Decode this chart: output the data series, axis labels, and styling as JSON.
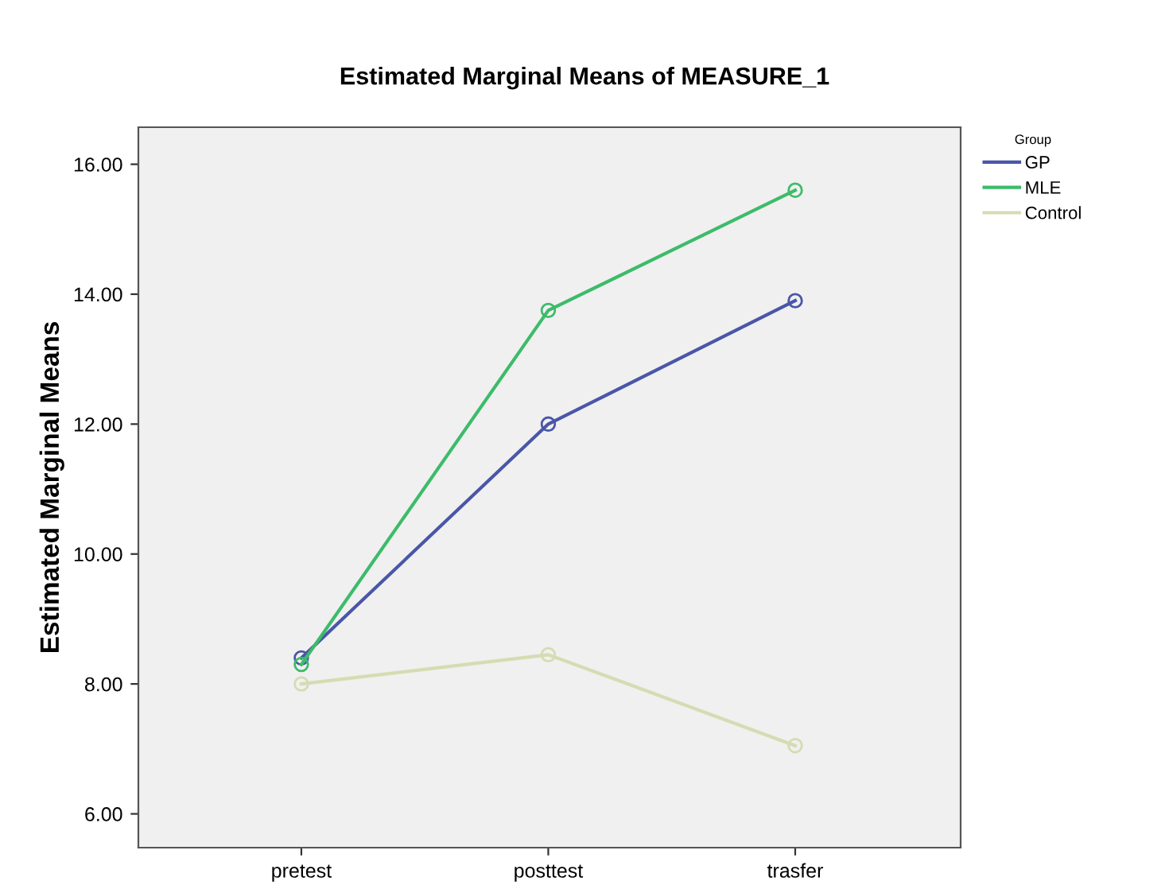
{
  "chart_data": {
    "type": "line",
    "title": "Estimated Marginal Means of MEASURE_1",
    "ylabel": "Estimated Marginal Means",
    "legend_title": "Group",
    "categories": [
      "pretest",
      "posttest",
      "trasfer"
    ],
    "series": [
      {
        "name": "GP",
        "color": "#4a56a8",
        "values": [
          8.4,
          12.0,
          13.9
        ]
      },
      {
        "name": "MLE",
        "color": "#3dbb6a",
        "values": [
          8.3,
          13.75,
          15.6
        ]
      },
      {
        "name": "Control",
        "color": "#d6dbb2",
        "values": [
          8.0,
          8.45,
          7.05
        ]
      }
    ],
    "ylim": [
      5.48,
      16.57
    ],
    "yticks": [
      {
        "value": 6,
        "label": "6.00"
      },
      {
        "value": 8,
        "label": "8.00"
      },
      {
        "value": 10,
        "label": "10.00"
      },
      {
        "value": 12,
        "label": "12.00"
      },
      {
        "value": 14,
        "label": "14.00"
      },
      {
        "value": 16,
        "label": "16.00"
      }
    ],
    "grid": false,
    "legend": "top right",
    "marker": "circle",
    "line_style": "solid"
  }
}
